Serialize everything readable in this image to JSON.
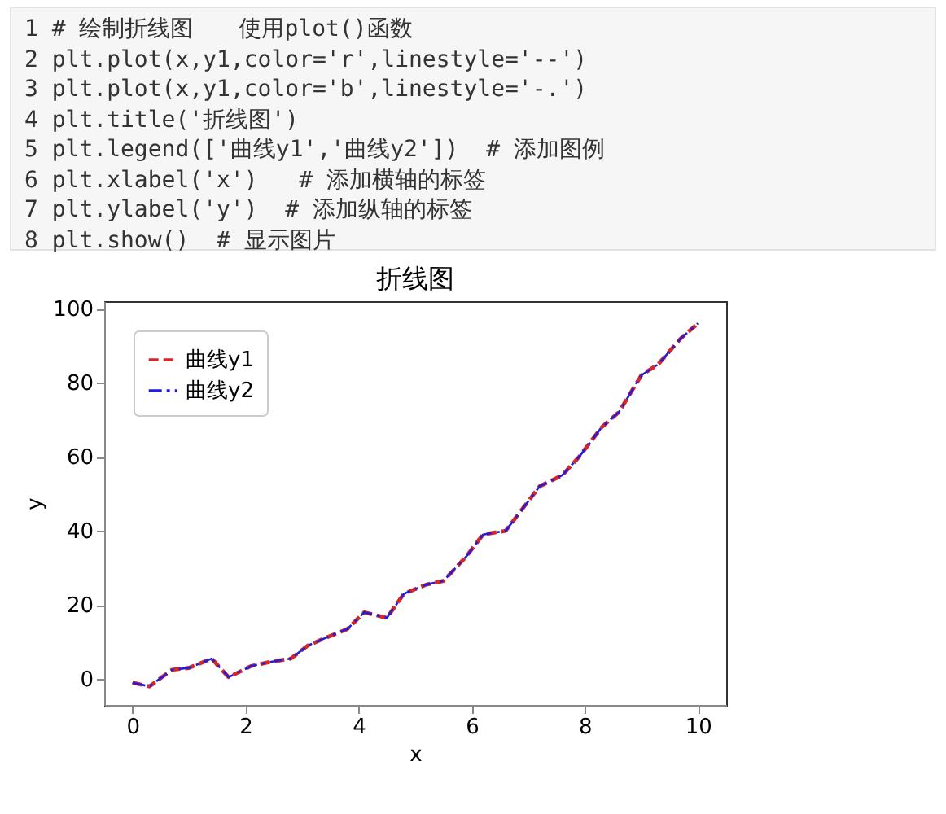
{
  "chart_data": {
    "type": "line",
    "title": "折线图",
    "xlabel": "x",
    "ylabel": "y",
    "annotations": [
      "1 # 绘制折线图　　使用plot()函数",
      "2 plt.plot(x,y1,color='r',linestyle='--')",
      "3 plt.plot(x,y1,color='b',linestyle='-.')",
      "4 plt.title('折线图')",
      "5 plt.legend(['曲线y1','曲线y2'])  # 添加图例",
      "6 plt.xlabel('x')   # 添加横轴的标签",
      "7 plt.ylabel('y')  # 添加纵轴的标签",
      "8 plt.show()  # 显示图片"
    ],
    "x": [
      0,
      0.3,
      0.7,
      1.0,
      1.4,
      1.7,
      2.1,
      2.4,
      2.8,
      3.1,
      3.4,
      3.8,
      4.1,
      4.5,
      4.8,
      5.2,
      5.5,
      5.9,
      6.2,
      6.6,
      6.9,
      7.2,
      7.6,
      7.9,
      8.3,
      8.6,
      9.0,
      9.3,
      9.7,
      10
    ],
    "series": [
      {
        "name": "曲线y1",
        "color": "#d62728",
        "line_style": "dashed",
        "values": [
          -1,
          -2,
          2.5,
          3,
          5.5,
          0.5,
          3.5,
          4.5,
          5.5,
          9,
          11,
          13.5,
          18,
          16.5,
          23,
          25.5,
          26.5,
          33,
          39,
          40,
          46,
          52,
          55,
          60,
          68,
          72,
          82,
          85,
          92,
          96
        ]
      },
      {
        "name": "曲线y2",
        "color": "#1f1fd6",
        "line_style": "dashdot",
        "values": [
          -1,
          -2,
          2.5,
          3,
          5.5,
          0.5,
          3.5,
          4.5,
          5.5,
          9,
          11,
          13.5,
          18,
          16.5,
          23,
          25.5,
          26.5,
          33,
          39,
          40,
          46,
          52,
          55,
          60,
          68,
          72,
          82,
          85,
          92,
          96
        ]
      }
    ],
    "xlim": [
      -0.5,
      10.5
    ],
    "xticks": [
      0,
      2,
      4,
      6,
      8,
      10
    ],
    "ylim": [
      -7,
      102
    ],
    "yticks": [
      0,
      20,
      40,
      60,
      80,
      100
    ],
    "grid": false,
    "legend": "top left"
  }
}
